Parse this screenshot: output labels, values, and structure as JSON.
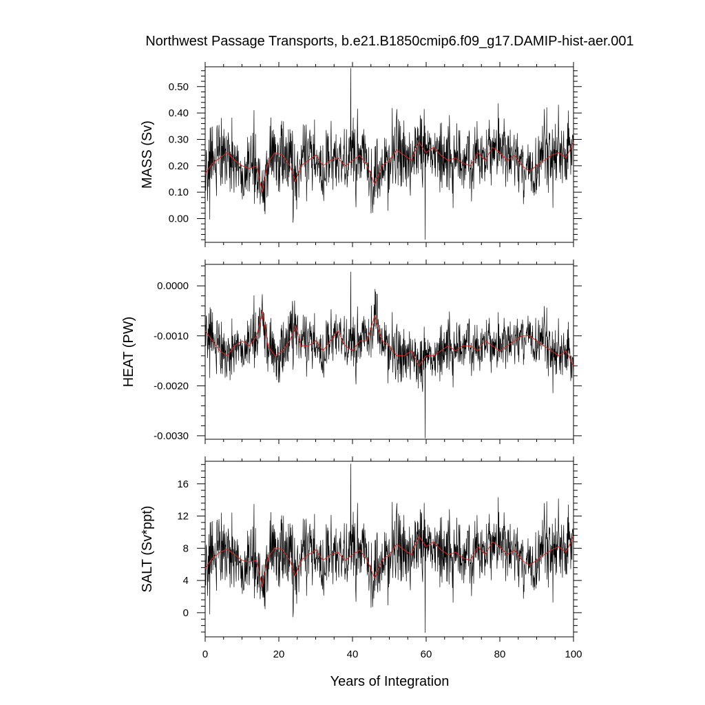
{
  "title": "Northwest Passage Transports, b.e21.B1850cmip6.f09_g17.DAMIP-hist-aer.001",
  "xlabel": "Years of Integration",
  "colors": {
    "raw": "#000000",
    "smoothed": "#e0241b",
    "frame": "#000000"
  },
  "chart_data": [
    {
      "type": "line",
      "ylabel": "MASS (Sv)",
      "xlim": [
        0,
        100
      ],
      "ylim": [
        -0.09,
        0.575
      ],
      "x_ticks": [
        0,
        20,
        40,
        60,
        80,
        100
      ],
      "y_ticks": [
        0.0,
        0.1,
        0.2,
        0.3,
        0.4,
        0.5
      ],
      "y_tick_labels": [
        "0.00",
        "0.10",
        "0.20",
        "0.30",
        "0.40",
        "0.50"
      ],
      "series": [
        {
          "key": "raw",
          "style": "monthly",
          "base": 0.22,
          "amplitude": 0.085,
          "min": -0.08,
          "max": 0.57
        },
        {
          "key": "smoothed",
          "style": "running-mean",
          "points": [
            [
              0,
              0.17
            ],
            [
              2,
              0.21
            ],
            [
              4,
              0.23
            ],
            [
              6,
              0.25
            ],
            [
              8,
              0.22
            ],
            [
              10,
              0.2
            ],
            [
              12,
              0.19
            ],
            [
              14,
              0.2
            ],
            [
              15.5,
              0.1
            ],
            [
              17,
              0.21
            ],
            [
              19,
              0.25
            ],
            [
              21,
              0.24
            ],
            [
              23,
              0.2
            ],
            [
              24.5,
              0.14
            ],
            [
              26,
              0.2
            ],
            [
              28,
              0.22
            ],
            [
              30,
              0.24
            ],
            [
              32,
              0.2
            ],
            [
              34,
              0.22
            ],
            [
              36,
              0.23
            ],
            [
              38,
              0.2
            ],
            [
              40,
              0.22
            ],
            [
              42,
              0.24
            ],
            [
              44,
              0.2
            ],
            [
              46,
              0.13
            ],
            [
              48,
              0.2
            ],
            [
              50,
              0.22
            ],
            [
              52,
              0.26
            ],
            [
              54,
              0.24
            ],
            [
              56,
              0.22
            ],
            [
              58,
              0.29
            ],
            [
              60,
              0.25
            ],
            [
              62,
              0.27
            ],
            [
              64,
              0.24
            ],
            [
              66,
              0.22
            ],
            [
              68,
              0.23
            ],
            [
              70,
              0.21
            ],
            [
              72,
              0.2
            ],
            [
              74,
              0.25
            ],
            [
              76,
              0.22
            ],
            [
              78,
              0.27
            ],
            [
              80,
              0.25
            ],
            [
              82,
              0.22
            ],
            [
              84,
              0.24
            ],
            [
              86,
              0.2
            ],
            [
              88,
              0.18
            ],
            [
              90,
              0.2
            ],
            [
              92,
              0.22
            ],
            [
              94,
              0.24
            ],
            [
              96,
              0.25
            ],
            [
              98,
              0.23
            ],
            [
              100,
              0.29
            ]
          ]
        }
      ]
    },
    {
      "type": "line",
      "ylabel": "HEAT (PW)",
      "xlim": [
        0,
        100
      ],
      "ylim": [
        -0.00307,
        0.00043
      ],
      "x_ticks": [
        0,
        20,
        40,
        60,
        80,
        100
      ],
      "y_ticks": [
        -0.003,
        -0.002,
        -0.001,
        0.0
      ],
      "y_tick_labels": [
        "-0.0030",
        "-0.0020",
        "-0.0010",
        "0.0000"
      ],
      "series": [
        {
          "key": "raw",
          "style": "monthly",
          "base": -0.00125,
          "amplitude": 0.00035,
          "min": -0.00305,
          "max": 0.0004
        },
        {
          "key": "smoothed",
          "style": "running-mean",
          "points": [
            [
              0,
              -0.0009
            ],
            [
              2,
              -0.0011
            ],
            [
              4,
              -0.0013
            ],
            [
              6,
              -0.0014
            ],
            [
              8,
              -0.0012
            ],
            [
              10,
              -0.0011
            ],
            [
              12,
              -0.0012
            ],
            [
              14,
              -0.001
            ],
            [
              15.5,
              -0.0005
            ],
            [
              17,
              -0.0012
            ],
            [
              19,
              -0.0014
            ],
            [
              21,
              -0.0013
            ],
            [
              23,
              -0.0011
            ],
            [
              24.5,
              -0.0008
            ],
            [
              26,
              -0.0012
            ],
            [
              28,
              -0.0012
            ],
            [
              30,
              -0.0011
            ],
            [
              32,
              -0.0013
            ],
            [
              34,
              -0.0011
            ],
            [
              36,
              -0.0009
            ],
            [
              38,
              -0.0012
            ],
            [
              40,
              -0.0013
            ],
            [
              42,
              -0.0011
            ],
            [
              44,
              -0.0011
            ],
            [
              46,
              -0.0006
            ],
            [
              48,
              -0.0011
            ],
            [
              50,
              -0.0012
            ],
            [
              52,
              -0.0014
            ],
            [
              54,
              -0.0014
            ],
            [
              56,
              -0.0013
            ],
            [
              58,
              -0.0016
            ],
            [
              60,
              -0.0014
            ],
            [
              62,
              -0.0014
            ],
            [
              64,
              -0.0013
            ],
            [
              66,
              -0.0012
            ],
            [
              68,
              -0.0013
            ],
            [
              70,
              -0.0012
            ],
            [
              72,
              -0.0012
            ],
            [
              74,
              -0.0013
            ],
            [
              76,
              -0.0011
            ],
            [
              78,
              -0.0012
            ],
            [
              80,
              -0.0013
            ],
            [
              82,
              -0.0012
            ],
            [
              84,
              -0.0011
            ],
            [
              86,
              -0.001
            ],
            [
              88,
              -0.001
            ],
            [
              90,
              -0.0011
            ],
            [
              92,
              -0.0012
            ],
            [
              94,
              -0.0013
            ],
            [
              96,
              -0.0014
            ],
            [
              98,
              -0.0013
            ],
            [
              100,
              -0.0016
            ]
          ]
        }
      ]
    },
    {
      "type": "line",
      "ylabel": "SALT (Sv*ppt)",
      "xlim": [
        0,
        100
      ],
      "ylim": [
        -3.0,
        18.8
      ],
      "x_ticks": [
        0,
        20,
        40,
        60,
        80,
        100
      ],
      "x_tick_labels": [
        "0",
        "20",
        "40",
        "60",
        "80",
        "100"
      ],
      "y_ticks": [
        0,
        4,
        8,
        12,
        16
      ],
      "y_tick_labels": [
        "0",
        "4",
        "8",
        "12",
        "16"
      ],
      "series": [
        {
          "key": "raw",
          "style": "monthly",
          "base": 7.2,
          "amplitude": 2.8,
          "min": -2.5,
          "max": 18.5
        },
        {
          "key": "smoothed",
          "style": "running-mean",
          "points": [
            [
              0,
              5.5
            ],
            [
              2,
              6.8
            ],
            [
              4,
              7.5
            ],
            [
              6,
              7.9
            ],
            [
              8,
              7.2
            ],
            [
              10,
              6.5
            ],
            [
              12,
              6.3
            ],
            [
              14,
              6.5
            ],
            [
              15.5,
              3.2
            ],
            [
              17,
              6.8
            ],
            [
              19,
              8.1
            ],
            [
              21,
              7.8
            ],
            [
              23,
              6.5
            ],
            [
              24.5,
              4.6
            ],
            [
              26,
              6.5
            ],
            [
              28,
              7.2
            ],
            [
              30,
              7.8
            ],
            [
              32,
              6.5
            ],
            [
              34,
              7.2
            ],
            [
              36,
              7.5
            ],
            [
              38,
              6.5
            ],
            [
              40,
              7.2
            ],
            [
              42,
              7.8
            ],
            [
              44,
              6.5
            ],
            [
              46,
              4.3
            ],
            [
              48,
              6.5
            ],
            [
              50,
              7.2
            ],
            [
              52,
              8.5
            ],
            [
              54,
              7.8
            ],
            [
              56,
              7.2
            ],
            [
              58,
              9.5
            ],
            [
              60,
              8.2
            ],
            [
              62,
              8.8
            ],
            [
              64,
              7.8
            ],
            [
              66,
              7.2
            ],
            [
              68,
              7.5
            ],
            [
              70,
              6.8
            ],
            [
              72,
              6.5
            ],
            [
              74,
              8.2
            ],
            [
              76,
              7.2
            ],
            [
              78,
              8.8
            ],
            [
              80,
              8.2
            ],
            [
              82,
              7.2
            ],
            [
              84,
              7.8
            ],
            [
              86,
              6.5
            ],
            [
              88,
              5.9
            ],
            [
              90,
              6.5
            ],
            [
              92,
              7.2
            ],
            [
              94,
              7.8
            ],
            [
              96,
              8.2
            ],
            [
              98,
              7.5
            ],
            [
              100,
              9.5
            ]
          ]
        }
      ]
    }
  ]
}
